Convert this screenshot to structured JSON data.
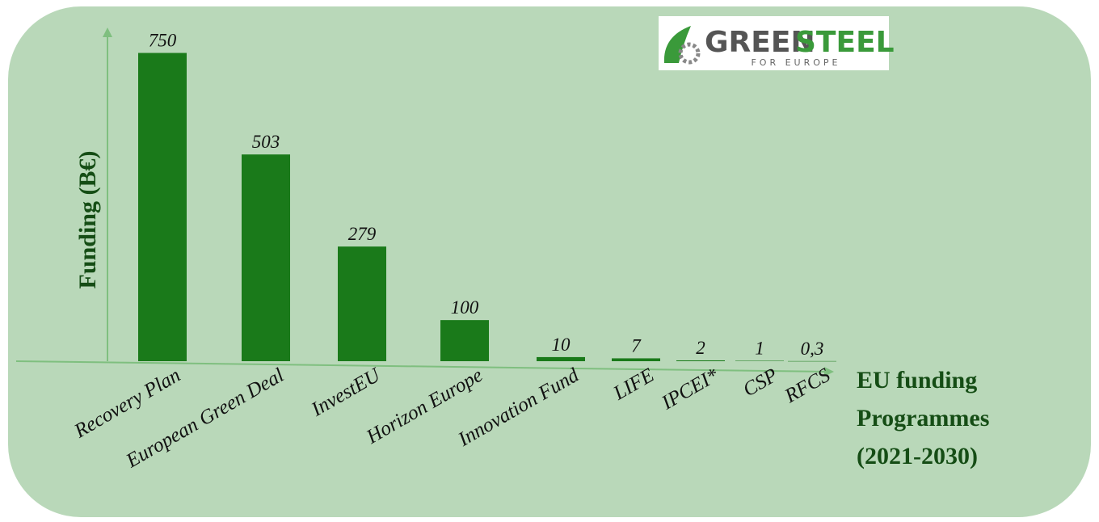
{
  "chart_data": {
    "type": "bar",
    "y_label": "Funding (B€)",
    "x_label": [
      "EU funding",
      "Programmes",
      "(2021-2030)"
    ],
    "categories": [
      "Recovery Plan",
      "European Green Deal",
      "InvestEU",
      "Horizon Europe",
      "Innovation Fund",
      "LIFE",
      "IPCEI*",
      "CSP",
      "RFCS"
    ],
    "values": [
      750,
      503,
      279,
      100,
      10,
      7,
      2,
      1,
      0.3
    ],
    "value_labels": [
      "750",
      "503",
      "279",
      "100",
      "10",
      "7",
      "2",
      "1",
      "0,3"
    ],
    "color": "#1a7a1a",
    "ylim": [
      0,
      810
    ]
  },
  "logo": {
    "word1": "GREEN",
    "word2": "STEEL",
    "sub": "FOR EUROPE"
  }
}
